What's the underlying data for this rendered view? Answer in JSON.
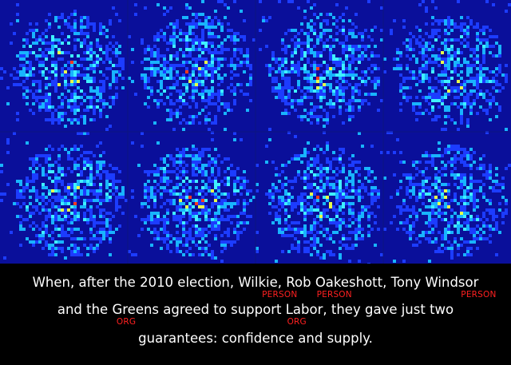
{
  "figure": {
    "panel_count": 8,
    "rows": 2,
    "columns": 4,
    "colors": {
      "background": "#0a0f9a",
      "low": "#1c3cff",
      "mid": "#18b4ff",
      "high_cyan": "#3ff0ff",
      "high_yellow": "#e8ff4a",
      "peak": "#ff3a1e"
    }
  },
  "caption": {
    "line1": {
      "p1": "When, after the 2010 election, ",
      "e1": "Wilkie",
      "p2": ", ",
      "e2": "Rob Oakeshott",
      "p3": ", ",
      "e3": "Tony Windsor"
    },
    "line2": {
      "p1": "and the ",
      "e1": "Greens",
      "p2": " agreed to support ",
      "e2": "Labor",
      "p3": ", they gave just two"
    },
    "line3": "guarantees: confidence and supply.",
    "tags": {
      "wilkie": "PERSON",
      "oakeshott": "PERSON",
      "windsor": "PERSON",
      "greens": "ORG",
      "labor": "ORG"
    },
    "text_color": "#ffffff",
    "tag_color": "#ff2020"
  }
}
